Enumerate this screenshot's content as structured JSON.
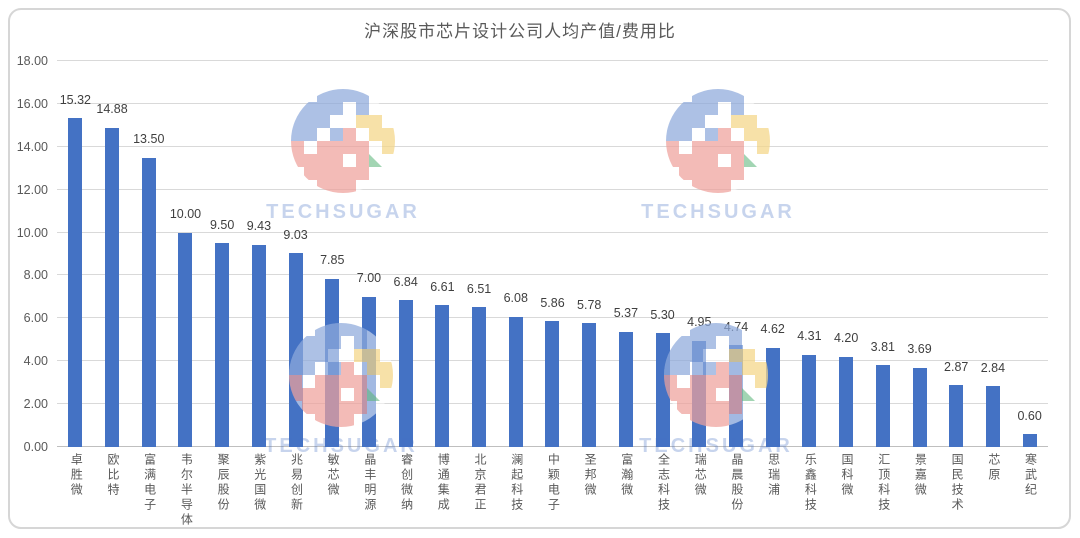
{
  "chart_data": {
    "type": "bar",
    "title": "沪深股市芯片设计公司人均产值/费用比",
    "categories": [
      "卓胜微",
      "欧比特",
      "富满电子",
      "韦尔半导体",
      "聚辰股份",
      "紫光国微",
      "兆易创新",
      "敏芯微",
      "晶丰明源",
      "睿创微纳",
      "博通集成",
      "北京君正",
      "澜起科技",
      "中颖电子",
      "圣邦微",
      "富瀚微",
      "全志科技",
      "瑞芯微",
      "晶晨股份",
      "思瑞浦",
      "乐鑫科技",
      "国科微",
      "汇顶科技",
      "景嘉微",
      "国民技术",
      "芯原",
      "寒武纪"
    ],
    "values": [
      15.32,
      14.88,
      13.5,
      10.0,
      9.5,
      9.43,
      9.03,
      7.85,
      7.0,
      6.84,
      6.61,
      6.51,
      6.08,
      5.86,
      5.78,
      5.37,
      5.3,
      4.95,
      4.74,
      4.62,
      4.31,
      4.2,
      3.81,
      3.69,
      2.87,
      2.84,
      0.6
    ],
    "xlabel": "",
    "ylabel": "",
    "ylim": [
      0,
      18
    ],
    "ytick_step": 2,
    "ytick_labels": [
      "0.00",
      "2.00",
      "4.00",
      "6.00",
      "8.00",
      "10.00",
      "12.00",
      "14.00",
      "16.00",
      "18.00"
    ],
    "grid": true,
    "legend": "none",
    "bar_color": "#4472C4",
    "value_labels_shown": true
  },
  "watermark": {
    "text": "TECHSUGAR",
    "text_color": "#4472C44D",
    "logo_colors": {
      "B": "#4472C470",
      "Y": "#EDC04678",
      "R": "#E4655A70",
      "G": "#5AB47890"
    }
  }
}
